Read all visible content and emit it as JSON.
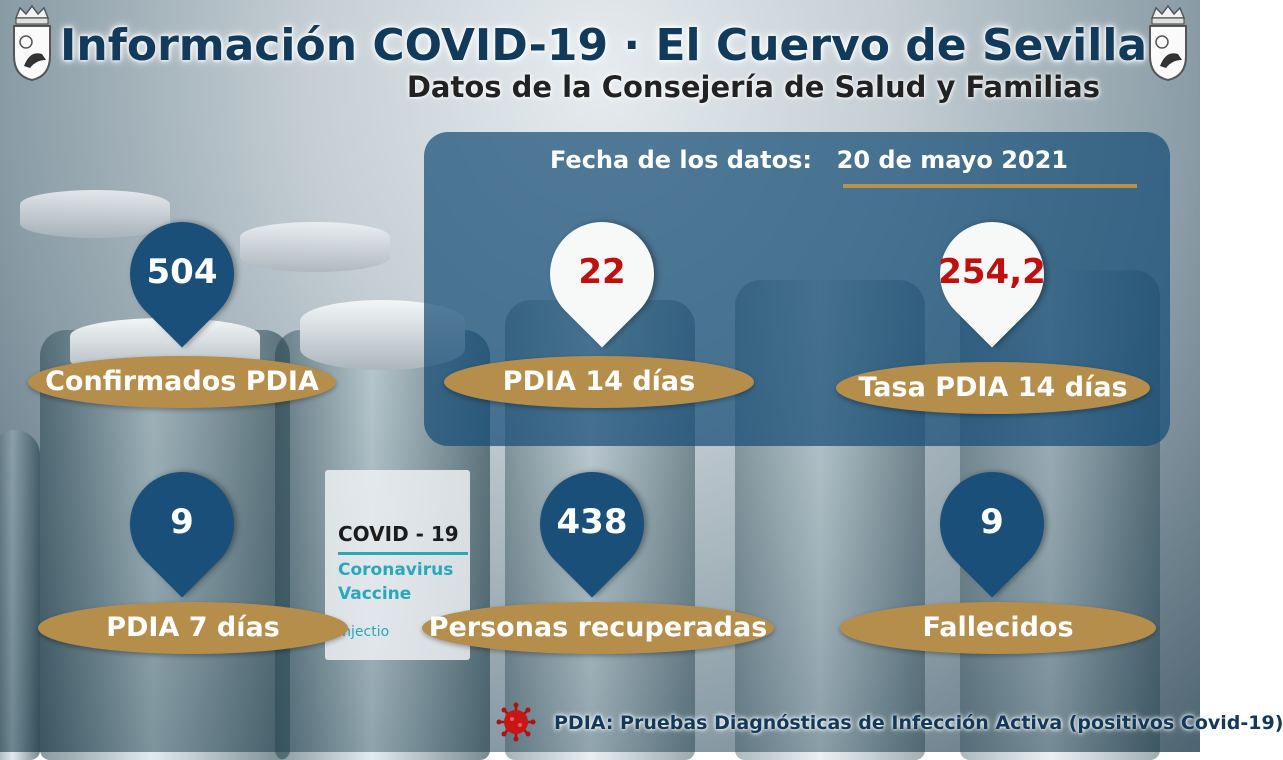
{
  "header": {
    "title": "Información COVID-19 · El Cuervo de Sevilla",
    "subtitle": "Datos de la Consejería de Salud y Familias"
  },
  "date": {
    "label": "Fecha de los datos:",
    "value": "20 de mayo 2021"
  },
  "stats": [
    {
      "value": "504",
      "label": "Confirmados PDIA",
      "style": "blue"
    },
    {
      "value": "22",
      "label": "PDIA 14 días",
      "style": "white"
    },
    {
      "value": "254,2",
      "label": "Tasa PDIA 14 días",
      "style": "white"
    },
    {
      "value": "9",
      "label": "PDIA 7 días",
      "style": "blue"
    },
    {
      "value": "438",
      "label": "Personas recuperadas",
      "style": "blue"
    },
    {
      "value": "9",
      "label": "Fallecidos",
      "style": "blue"
    }
  ],
  "background_vial_label": {
    "brand": "COVID - 19",
    "line1": "Coronavirus",
    "line2": "Vaccine",
    "line3": "Injectio"
  },
  "footer": {
    "text": "PDIA: Pruebas Diagnósticas de Infección Activa (positivos Covid-19)"
  },
  "colors": {
    "pin_blue": "#1a4f79",
    "label_gold": "#b58e4c",
    "value_red": "#c00f0f",
    "panel_blue": "#164e76"
  }
}
